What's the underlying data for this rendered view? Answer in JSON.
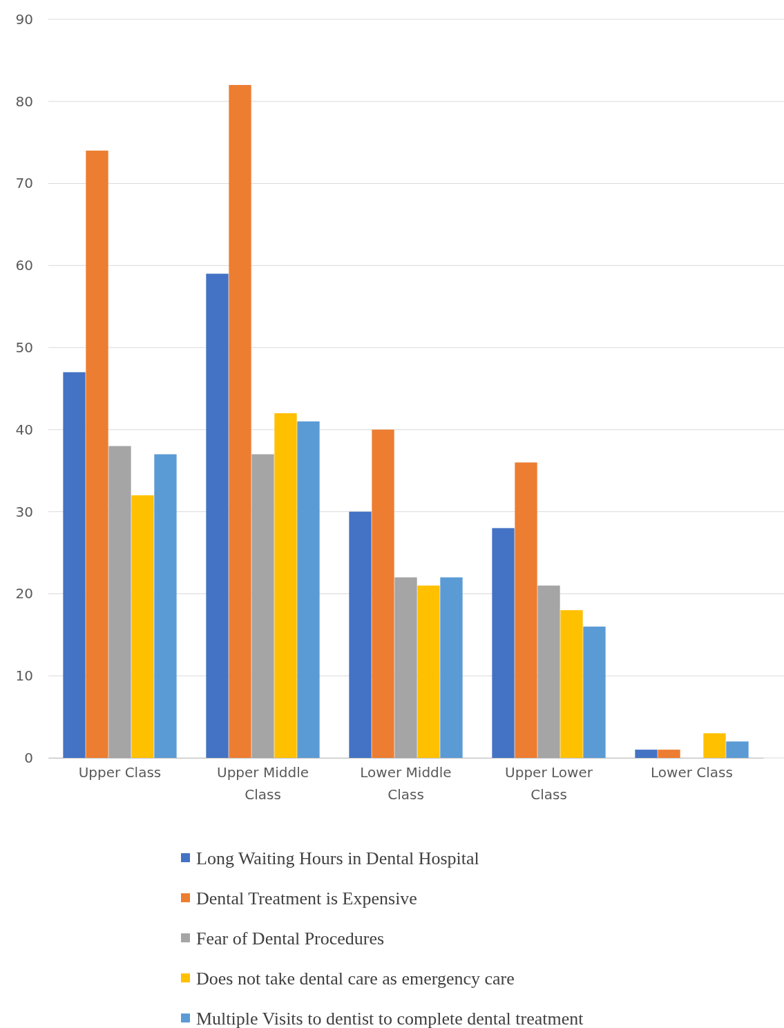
{
  "chart_data": {
    "type": "bar",
    "categories": [
      "Upper Class",
      "Upper Middle Class",
      "Lower Middle Class",
      "Upper Lower Class",
      "Lower Class"
    ],
    "series": [
      {
        "name": "Long Waiting Hours in Dental Hospital",
        "color": "#4472c4",
        "values": [
          47,
          59,
          30,
          28,
          1
        ]
      },
      {
        "name": "Dental Treatment is Expensive",
        "color": "#ed7d31",
        "values": [
          74,
          82,
          40,
          36,
          1
        ]
      },
      {
        "name": "Fear of Dental Procedures",
        "color": "#a5a5a5",
        "values": [
          38,
          37,
          22,
          21,
          0
        ]
      },
      {
        "name": "Does not take dental care as emergency care",
        "color": "#ffc000",
        "values": [
          32,
          42,
          21,
          18,
          3
        ]
      },
      {
        "name": "Multiple Visits to dentist to complete dental treatment",
        "color": "#5b9bd5",
        "values": [
          37,
          41,
          22,
          16,
          2
        ]
      }
    ],
    "ylim": [
      0,
      90
    ],
    "yticks": [
      0,
      10,
      20,
      30,
      40,
      50,
      60,
      70,
      80,
      90
    ],
    "grid": "y",
    "legend": "bottom"
  }
}
